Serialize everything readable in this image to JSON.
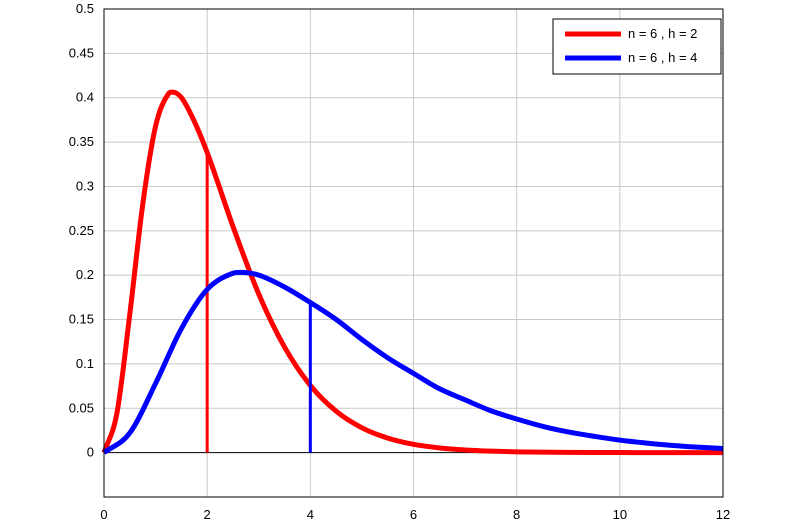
{
  "chart_data": {
    "type": "line",
    "xlim": [
      0,
      12
    ],
    "ylim": [
      -0.05,
      0.5
    ],
    "x_ticks": [
      0,
      2,
      4,
      6,
      8,
      10,
      12
    ],
    "y_ticks": [
      0,
      0.05,
      0.1,
      0.15,
      0.2,
      0.25,
      0.3,
      0.35,
      0.4,
      0.45,
      0.5
    ],
    "x_tick_labels": [
      "0",
      "2",
      "4",
      "6",
      "8",
      "10",
      "12"
    ],
    "y_tick_labels": [
      "0",
      "0.05",
      "0.1",
      "0.15",
      "0.2",
      "0.25",
      "0.3",
      "0.35",
      "0.4",
      "0.45",
      "0.5"
    ],
    "grid": true,
    "legend_position": "top-right",
    "title": "",
    "xlabel": "",
    "ylabel": "",
    "series": [
      {
        "name": "n = 6 , h = 2",
        "color": "#ff0000",
        "x": [
          0,
          0.25,
          0.5,
          0.75,
          1,
          1.25,
          1.333,
          1.5,
          1.75,
          2,
          2.5,
          3,
          3.5,
          4,
          4.5,
          5,
          5.5,
          6,
          6.5,
          7,
          7.5,
          8,
          9,
          10,
          11,
          12
        ],
        "y": [
          0,
          0.0444,
          0.156,
          0.2794,
          0.3679,
          0.4045,
          0.4063,
          0.4002,
          0.3734,
          0.3383,
          0.255,
          0.1787,
          0.119,
          0.0758,
          0.0467,
          0.028,
          0.0164,
          0.0094,
          0.0054,
          0.003,
          0.0017,
          0.0009,
          0.0003,
          0.0001,
          0.0,
          0.0
        ],
        "vertical_marker": {
          "x": 2,
          "y": 0.3383
        }
      },
      {
        "name": "n = 6 , h = 4",
        "color": "#0000ff",
        "x": [
          0,
          0.5,
          1,
          1.5,
          2,
          2.5,
          2.667,
          3,
          3.5,
          4,
          4.5,
          5,
          5.5,
          6,
          6.5,
          7,
          7.5,
          8,
          8.5,
          9,
          9.5,
          10,
          10.5,
          11,
          11.5,
          12
        ],
        "y": [
          0,
          0.0222,
          0.078,
          0.1397,
          0.1839,
          0.2022,
          0.2032,
          0.2001,
          0.1867,
          0.1692,
          0.1501,
          0.1275,
          0.1069,
          0.0893,
          0.0721,
          0.0595,
          0.0472,
          0.0379,
          0.0297,
          0.0233,
          0.0184,
          0.0141,
          0.0109,
          0.0082,
          0.0062,
          0.0047
        ],
        "vertical_marker": {
          "x": 4,
          "y": 0.1692
        }
      }
    ]
  }
}
